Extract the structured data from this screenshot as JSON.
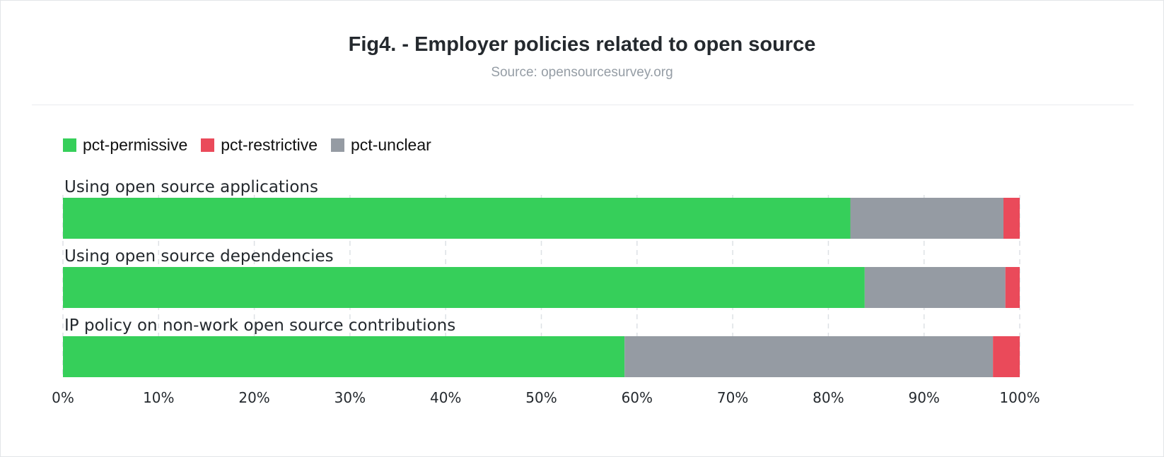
{
  "chart_data": {
    "type": "bar",
    "orientation": "horizontal",
    "stacked": true,
    "title": "Fig4. - Employer policies related to open source",
    "subtitle": "Source: opensourcesurvey.org",
    "categories": [
      "Using open source applications",
      "Using open source dependencies",
      "IP policy on non-work open source contributions"
    ],
    "series": [
      {
        "name": "pct-permissive",
        "color": "#36cf5a",
        "values": [
          0.823,
          0.838,
          0.587
        ]
      },
      {
        "name": "pct-unclear",
        "color": "#959ba3",
        "values": [
          0.16,
          0.147,
          0.385
        ]
      },
      {
        "name": "pct-restrictive",
        "color": "#ea4a5a",
        "values": [
          0.017,
          0.015,
          0.028
        ]
      }
    ],
    "legend": [
      {
        "name": "pct-permissive",
        "color": "#36cf5a"
      },
      {
        "name": "pct-restrictive",
        "color": "#ea4a5a"
      },
      {
        "name": "pct-unclear",
        "color": "#959ba3"
      }
    ],
    "legend_position": "top-left",
    "xlim": [
      0,
      1
    ],
    "x_ticks": [
      "0%",
      "10%",
      "20%",
      "30%",
      "40%",
      "50%",
      "60%",
      "70%",
      "80%",
      "90%",
      "100%"
    ],
    "grid": "vertical dashed"
  }
}
